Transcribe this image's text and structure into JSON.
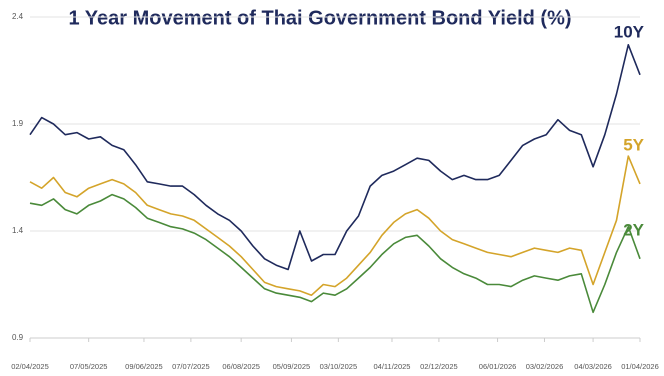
{
  "chart_data": {
    "type": "line",
    "title": "1 Year Movement of Thai Government Bond Yield (%)",
    "x": [
      "02/04/2025",
      "09/04/2025",
      "16/04/2025",
      "23/04/2025",
      "30/04/2025",
      "07/05/2025",
      "14/05/2025",
      "21/05/2025",
      "28/05/2025",
      "04/06/2025",
      "11/06/2025",
      "18/06/2025",
      "25/06/2025",
      "02/07/2025",
      "09/07/2025",
      "16/07/2025",
      "23/07/2025",
      "30/07/2025",
      "06/08/2025",
      "13/08/2025",
      "20/08/2025",
      "27/08/2025",
      "03/09/2025",
      "10/09/2025",
      "17/09/2025",
      "24/09/2025",
      "01/10/2025",
      "08/10/2025",
      "15/10/2025",
      "22/10/2025",
      "29/10/2025",
      "05/11/2025",
      "12/11/2025",
      "19/11/2025",
      "26/11/2025",
      "03/12/2025",
      "10/12/2025",
      "17/12/2025",
      "24/12/2025",
      "31/12/2025",
      "07/01/2026",
      "14/01/2026",
      "21/01/2026",
      "28/01/2026",
      "04/02/2026",
      "11/02/2026",
      "18/02/2026",
      "25/02/2026",
      "04/03/2026",
      "11/03/2026",
      "18/03/2026",
      "25/03/2026",
      "01/04/2026"
    ],
    "series": [
      {
        "name": "10Y",
        "color": "#1f2a5c",
        "values": [
          1.85,
          1.93,
          1.9,
          1.85,
          1.86,
          1.83,
          1.84,
          1.8,
          1.78,
          1.71,
          1.63,
          1.62,
          1.61,
          1.61,
          1.57,
          1.52,
          1.48,
          1.45,
          1.4,
          1.33,
          1.27,
          1.24,
          1.22,
          1.4,
          1.26,
          1.29,
          1.29,
          1.4,
          1.47,
          1.61,
          1.66,
          1.68,
          1.71,
          1.74,
          1.73,
          1.68,
          1.64,
          1.66,
          1.64,
          1.64,
          1.66,
          1.73,
          1.8,
          1.83,
          1.85,
          1.92,
          1.87,
          1.85,
          1.7,
          1.85,
          2.04,
          2.27,
          2.13
        ]
      },
      {
        "name": "5Y",
        "color": "#d4a42a",
        "values": [
          1.63,
          1.6,
          1.65,
          1.58,
          1.56,
          1.6,
          1.62,
          1.64,
          1.62,
          1.58,
          1.52,
          1.5,
          1.48,
          1.47,
          1.45,
          1.41,
          1.37,
          1.33,
          1.28,
          1.22,
          1.16,
          1.14,
          1.13,
          1.12,
          1.1,
          1.15,
          1.14,
          1.18,
          1.24,
          1.3,
          1.38,
          1.44,
          1.48,
          1.5,
          1.46,
          1.4,
          1.36,
          1.34,
          1.32,
          1.3,
          1.29,
          1.28,
          1.3,
          1.32,
          1.31,
          1.3,
          1.32,
          1.31,
          1.15,
          1.3,
          1.45,
          1.75,
          1.62
        ]
      },
      {
        "name": "2Y",
        "color": "#4a8a3a",
        "values": [
          1.53,
          1.52,
          1.55,
          1.5,
          1.48,
          1.52,
          1.54,
          1.57,
          1.55,
          1.51,
          1.46,
          1.44,
          1.42,
          1.41,
          1.39,
          1.36,
          1.32,
          1.28,
          1.23,
          1.18,
          1.13,
          1.11,
          1.1,
          1.09,
          1.07,
          1.11,
          1.1,
          1.13,
          1.18,
          1.23,
          1.29,
          1.34,
          1.37,
          1.38,
          1.33,
          1.27,
          1.23,
          1.2,
          1.18,
          1.15,
          1.15,
          1.14,
          1.17,
          1.19,
          1.18,
          1.17,
          1.19,
          1.2,
          1.02,
          1.15,
          1.3,
          1.42,
          1.27
        ]
      }
    ],
    "xticks": [
      "02/04/2025",
      "07/05/2025",
      "09/06/2025",
      "07/07/2025",
      "06/08/2025",
      "05/09/2025",
      "03/10/2025",
      "04/11/2025",
      "02/12/2025",
      "06/01/2026",
      "03/02/2026",
      "04/03/2026",
      "01/04/2026"
    ],
    "ylim": [
      0.9,
      2.4
    ],
    "yticks": [
      0.9,
      1.4,
      1.9,
      2.4
    ],
    "grid": true
  }
}
